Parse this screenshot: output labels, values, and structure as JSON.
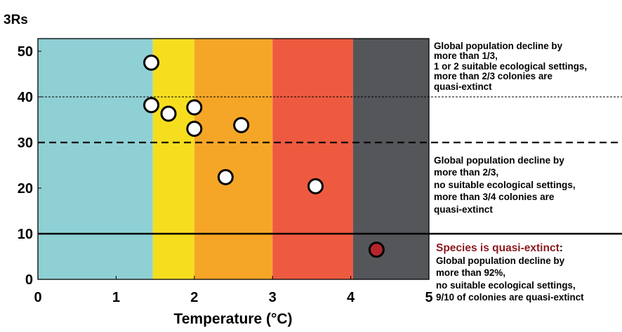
{
  "chart_data": {
    "type": "scatter",
    "title": "3Rs",
    "xlabel": "Temperature (°C)",
    "ylabel": "",
    "xlim": [
      0,
      5
    ],
    "ylim": [
      0,
      55
    ],
    "xticks": [
      "0",
      "1",
      "2",
      "3",
      "4",
      "5"
    ],
    "yticks": [
      "0",
      "10",
      "20",
      "30",
      "40",
      "50"
    ],
    "grid": false,
    "bands": [
      {
        "x0": 0,
        "x1": 1.47,
        "color": "#8fd0d5"
      },
      {
        "x0": 1.47,
        "x1": 2.0,
        "color": "#f6de1f"
      },
      {
        "x0": 2.0,
        "x1": 3.0,
        "color": "#f6a626"
      },
      {
        "x0": 3.0,
        "x1": 4.03,
        "color": "#ee5a40"
      },
      {
        "x0": 4.03,
        "x1": 5.0,
        "color": "#54565a"
      }
    ],
    "thresholds": [
      {
        "y": 40,
        "style": "dotted"
      },
      {
        "y": 30,
        "style": "dashed"
      },
      {
        "y": 10,
        "style": "solid"
      }
    ],
    "points": [
      {
        "x": 1.45,
        "y": 47.5,
        "color": "#ffffff"
      },
      {
        "x": 1.45,
        "y": 38.2,
        "color": "#ffffff"
      },
      {
        "x": 1.67,
        "y": 36.3,
        "color": "#ffffff"
      },
      {
        "x": 2.0,
        "y": 37.7,
        "color": "#ffffff"
      },
      {
        "x": 2.0,
        "y": 33.0,
        "color": "#ffffff"
      },
      {
        "x": 2.6,
        "y": 33.8,
        "color": "#ffffff"
      },
      {
        "x": 2.4,
        "y": 22.4,
        "color": "#ffffff"
      },
      {
        "x": 3.55,
        "y": 20.4,
        "color": "#ffffff"
      },
      {
        "x": 4.33,
        "y": 6.5,
        "color": "#b5252b"
      }
    ],
    "annotations": {
      "a": [
        "Global population decline by",
        "more than 1/3,",
        "1 or 2 suitable ecological settings,",
        "more than 2/3  colonies are",
        "quasi-extinct"
      ],
      "b": [
        "Global population decline by",
        "more than 2/3,",
        "no suitable ecological settings,",
        "more than 3/4 colonies are",
        "quasi-extinct"
      ],
      "c_headline": "Species is quasi-extinct",
      "c_colon": ":",
      "c": [
        "Global population decline by",
        "more than 92%,",
        "no suitable ecological settings,",
        "9/10 of colonies are quasi-extinct"
      ]
    }
  }
}
